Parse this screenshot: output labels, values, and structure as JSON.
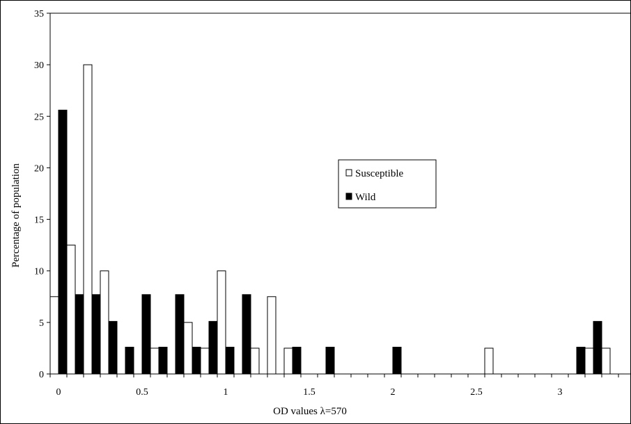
{
  "chart_data": {
    "type": "bar",
    "title": "",
    "xlabel": "OD values λ=570",
    "ylabel": "Percentage of population",
    "ylim": [
      0,
      35
    ],
    "yticks": [
      0,
      5,
      10,
      15,
      20,
      25,
      30,
      35
    ],
    "xtick_labels": [
      "0",
      "0.5",
      "1",
      "1.5",
      "2",
      "2.5",
      "3"
    ],
    "bin_width": 0.1,
    "bin_centers": [
      0.0,
      0.1,
      0.2,
      0.3,
      0.4,
      0.5,
      0.6,
      0.7,
      0.8,
      0.9,
      1.0,
      1.1,
      1.2,
      1.3,
      1.4,
      1.5,
      1.6,
      1.7,
      1.8,
      1.9,
      2.0,
      2.1,
      2.2,
      2.3,
      2.4,
      2.5,
      2.6,
      2.7,
      2.8,
      2.9,
      3.0,
      3.1,
      3.2,
      3.3
    ],
    "series": [
      {
        "name": "Susceptible",
        "color": "#ffffff",
        "values": [
          7.5,
          12.5,
          30,
          10,
          0,
          0,
          2.5,
          0,
          5,
          2.5,
          10,
          0,
          2.5,
          7.5,
          2.5,
          0,
          0,
          0,
          0,
          0,
          0,
          0,
          0,
          0,
          0,
          0,
          2.5,
          0,
          0,
          0,
          0,
          0,
          2.5,
          2.5
        ]
      },
      {
        "name": "Wild",
        "color": "#000000",
        "values": [
          25.6,
          7.7,
          7.7,
          5.1,
          2.6,
          7.7,
          2.6,
          7.7,
          2.6,
          5.1,
          2.6,
          7.7,
          0,
          0,
          2.6,
          0,
          2.6,
          0,
          0,
          0,
          2.6,
          0,
          0,
          0,
          0,
          0,
          0,
          0,
          0,
          0,
          0,
          2.6,
          5.1,
          0
        ]
      }
    ],
    "legend_position": "center-right",
    "grid": false
  }
}
